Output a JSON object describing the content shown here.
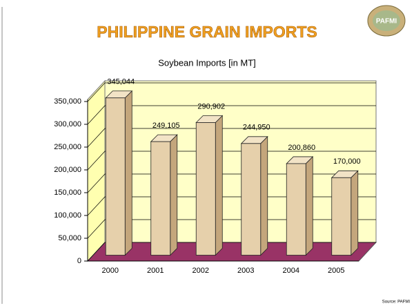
{
  "slide_title": "PHILIPPINE GRAIN IMPORTS",
  "logo": "PAFMI",
  "chart_data": {
    "type": "bar",
    "title": "Soybean Imports [in MT]",
    "categories": [
      "2000",
      "2001",
      "2002",
      "2003",
      "2004",
      "2005"
    ],
    "values": [
      345044,
      249105,
      290902,
      244950,
      200860,
      170000
    ],
    "value_labels": [
      "345,044",
      "249,105",
      "290,902",
      "244,950",
      "200,860",
      "170,000"
    ],
    "color": "#e6d0ab",
    "ylim": [
      0,
      350000
    ],
    "yticks": [
      0,
      {
        "value": 50000,
        "label": "50,000"
      },
      {
        "value": 100000,
        "label": "100,000"
      },
      {
        "value": 150000,
        "label": "150,000"
      },
      {
        "value": 200000,
        "label": "200,000"
      },
      {
        "value": 250000,
        "label": "250,000"
      },
      {
        "value": 300000,
        "label": "300,000"
      },
      {
        "value": 350000,
        "label": "350,000"
      }
    ],
    "grid": true,
    "source": "Source: PAFMI"
  }
}
